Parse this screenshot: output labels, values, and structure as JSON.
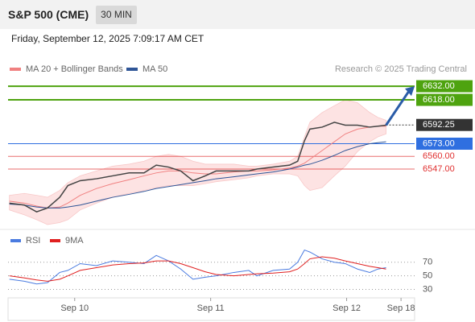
{
  "header": {
    "title": "S&P 500 (CME)",
    "interval": "30 MIN"
  },
  "timestamp": "Friday, September 12, 2025 7:09:17 AM CET",
  "chart_data": [
    {
      "type": "line",
      "source": "Research © 2025 Trading Central",
      "x": [
        9.52,
        9.63,
        9.72,
        9.8,
        9.89,
        9.95,
        10.04,
        10.16,
        10.28,
        10.4,
        10.51,
        10.6,
        10.69,
        10.78,
        10.87,
        10.96,
        11.04,
        11.17,
        11.28,
        11.34,
        11.46,
        11.58,
        11.64,
        11.69,
        11.73,
        11.82,
        11.91,
        11.99,
        12.08,
        12.17,
        12.23,
        12.29
      ],
      "xlim": [
        9.51,
        12.5
      ],
      "ylim": [
        6485,
        6642
      ],
      "price": {
        "color": "#444444",
        "values": [
          6512,
          6510,
          6503,
          6507,
          6518,
          6530,
          6535,
          6537,
          6540,
          6543,
          6543,
          6551,
          6549,
          6545,
          6535,
          6540,
          6545,
          6545,
          6545,
          6547,
          6549,
          6551,
          6555,
          6576,
          6588,
          6590,
          6595,
          6592,
          6592,
          6590,
          6591,
          6592
        ]
      },
      "series": [
        {
          "name": "MA 20 + Bollinger Bands",
          "color": "#f08080",
          "values": [
            6514,
            6512,
            6509,
            6507,
            6508,
            6512,
            6520,
            6527,
            6532,
            6536,
            6540,
            6543,
            6545,
            6545,
            6543,
            6542,
            6542,
            6544,
            6545,
            6545,
            6546,
            6548,
            6550,
            6553,
            6557,
            6566,
            6575,
            6583,
            6588,
            6590,
            6591,
            6591
          ],
          "band": {
            "color": "#fde3e3",
            "upper": [
              6520,
              6522,
              6520,
              6518,
              6525,
              6533,
              6540,
              6545,
              6550,
              6552,
              6555,
              6560,
              6562,
              6560,
              6555,
              6552,
              6552,
              6552,
              6550,
              6550,
              6552,
              6555,
              6560,
              6580,
              6595,
              6605,
              6612,
              6618,
              6615,
              6605,
              6600,
              6597
            ],
            "lower": [
              6505,
              6500,
              6495,
              6490,
              6492,
              6495,
              6505,
              6512,
              6518,
              6522,
              6525,
              6528,
              6530,
              6530,
              6530,
              6532,
              6534,
              6536,
              6538,
              6540,
              6542,
              6542,
              6540,
              6530,
              6525,
              6528,
              6540,
              6550,
              6565,
              6575,
              6580,
              6583
            ]
          }
        },
        {
          "name": "MA 50",
          "color": "#2f5597",
          "values": [
            6511,
            6510,
            6508,
            6507,
            6507,
            6508,
            6510,
            6514,
            6518,
            6521,
            6524,
            6527,
            6529,
            6531,
            6533,
            6535,
            6537,
            6539,
            6541,
            6542,
            6544,
            6547,
            6549,
            6551,
            6552,
            6556,
            6561,
            6566,
            6570,
            6573,
            6574,
            6575
          ]
        }
      ],
      "levels": [
        {
          "value": 6632,
          "label": "6632.00",
          "color": "#4ea30f",
          "style": "box"
        },
        {
          "value": 6618,
          "label": "6618.00",
          "color": "#4ea30f",
          "style": "box"
        },
        {
          "value": 6592.25,
          "label": "6592.25",
          "color": "#333333",
          "style": "current"
        },
        {
          "value": 6573,
          "label": "6573.00",
          "color": "#2f6fe0",
          "style": "box"
        },
        {
          "value": 6560,
          "label": "6560.00",
          "color": "#e03030",
          "style": "text"
        },
        {
          "value": 6547,
          "label": "6547.00",
          "color": "#e03030",
          "style": "text"
        }
      ]
    },
    {
      "type": "line",
      "x": [
        9.52,
        9.63,
        9.72,
        9.8,
        9.89,
        9.95,
        10.04,
        10.16,
        10.28,
        10.4,
        10.51,
        10.6,
        10.69,
        10.78,
        10.87,
        10.96,
        11.04,
        11.17,
        11.28,
        11.34,
        11.46,
        11.58,
        11.64,
        11.69,
        11.73,
        11.82,
        11.91,
        11.99,
        12.08,
        12.17,
        12.23,
        12.29
      ],
      "xlim": [
        9.51,
        12.5
      ],
      "ylim": [
        20,
        110
      ],
      "yticks": [
        70,
        50,
        30
      ],
      "xticks": [
        {
          "value": 10,
          "label": "Sep 10"
        },
        {
          "value": 11,
          "label": "Sep 11"
        },
        {
          "value": 12,
          "label": "Sep 12"
        },
        {
          "value": 12.4,
          "label": "Sep 18"
        }
      ],
      "series": [
        {
          "name": "RSI",
          "color": "#4a7be0",
          "values": [
            45,
            42,
            38,
            40,
            55,
            58,
            68,
            65,
            72,
            70,
            68,
            80,
            72,
            60,
            45,
            48,
            50,
            55,
            58,
            50,
            58,
            60,
            70,
            88,
            85,
            75,
            70,
            68,
            60,
            55,
            60,
            62
          ]
        },
        {
          "name": "9MA",
          "color": "#e02020",
          "values": [
            50,
            47,
            44,
            42,
            45,
            50,
            58,
            62,
            66,
            68,
            69,
            72,
            72,
            68,
            62,
            56,
            52,
            50,
            52,
            53,
            54,
            56,
            60,
            68,
            75,
            78,
            76,
            72,
            68,
            64,
            62,
            60
          ]
        }
      ]
    }
  ]
}
